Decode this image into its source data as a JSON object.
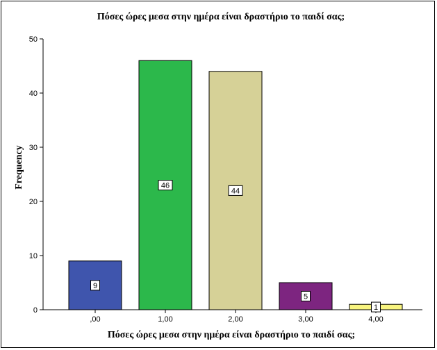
{
  "chart_data": {
    "type": "bar",
    "title": "Πόσες ώρες μεσα στην ημέρα είναι δραστήριο το παιδί σας;",
    "xlabel": "Πόσες ώρες μεσα στην ημέρα είναι δραστήριο το παιδί σας;",
    "ylabel": "Frequency",
    "categories": [
      ",00",
      "1,00",
      "2,00",
      "3,00",
      "4,00"
    ],
    "values": [
      9,
      46,
      44,
      5,
      1
    ],
    "data_labels": [
      "9",
      "46",
      "44",
      "5",
      "1"
    ],
    "colors": [
      "#3f55ad",
      "#2cb84b",
      "#d6d197",
      "#7d2580",
      "#f8f47f"
    ],
    "ylim": [
      0,
      50
    ],
    "yticks": [
      0,
      10,
      20,
      30,
      40,
      50
    ],
    "grid": false,
    "legend": "none"
  }
}
